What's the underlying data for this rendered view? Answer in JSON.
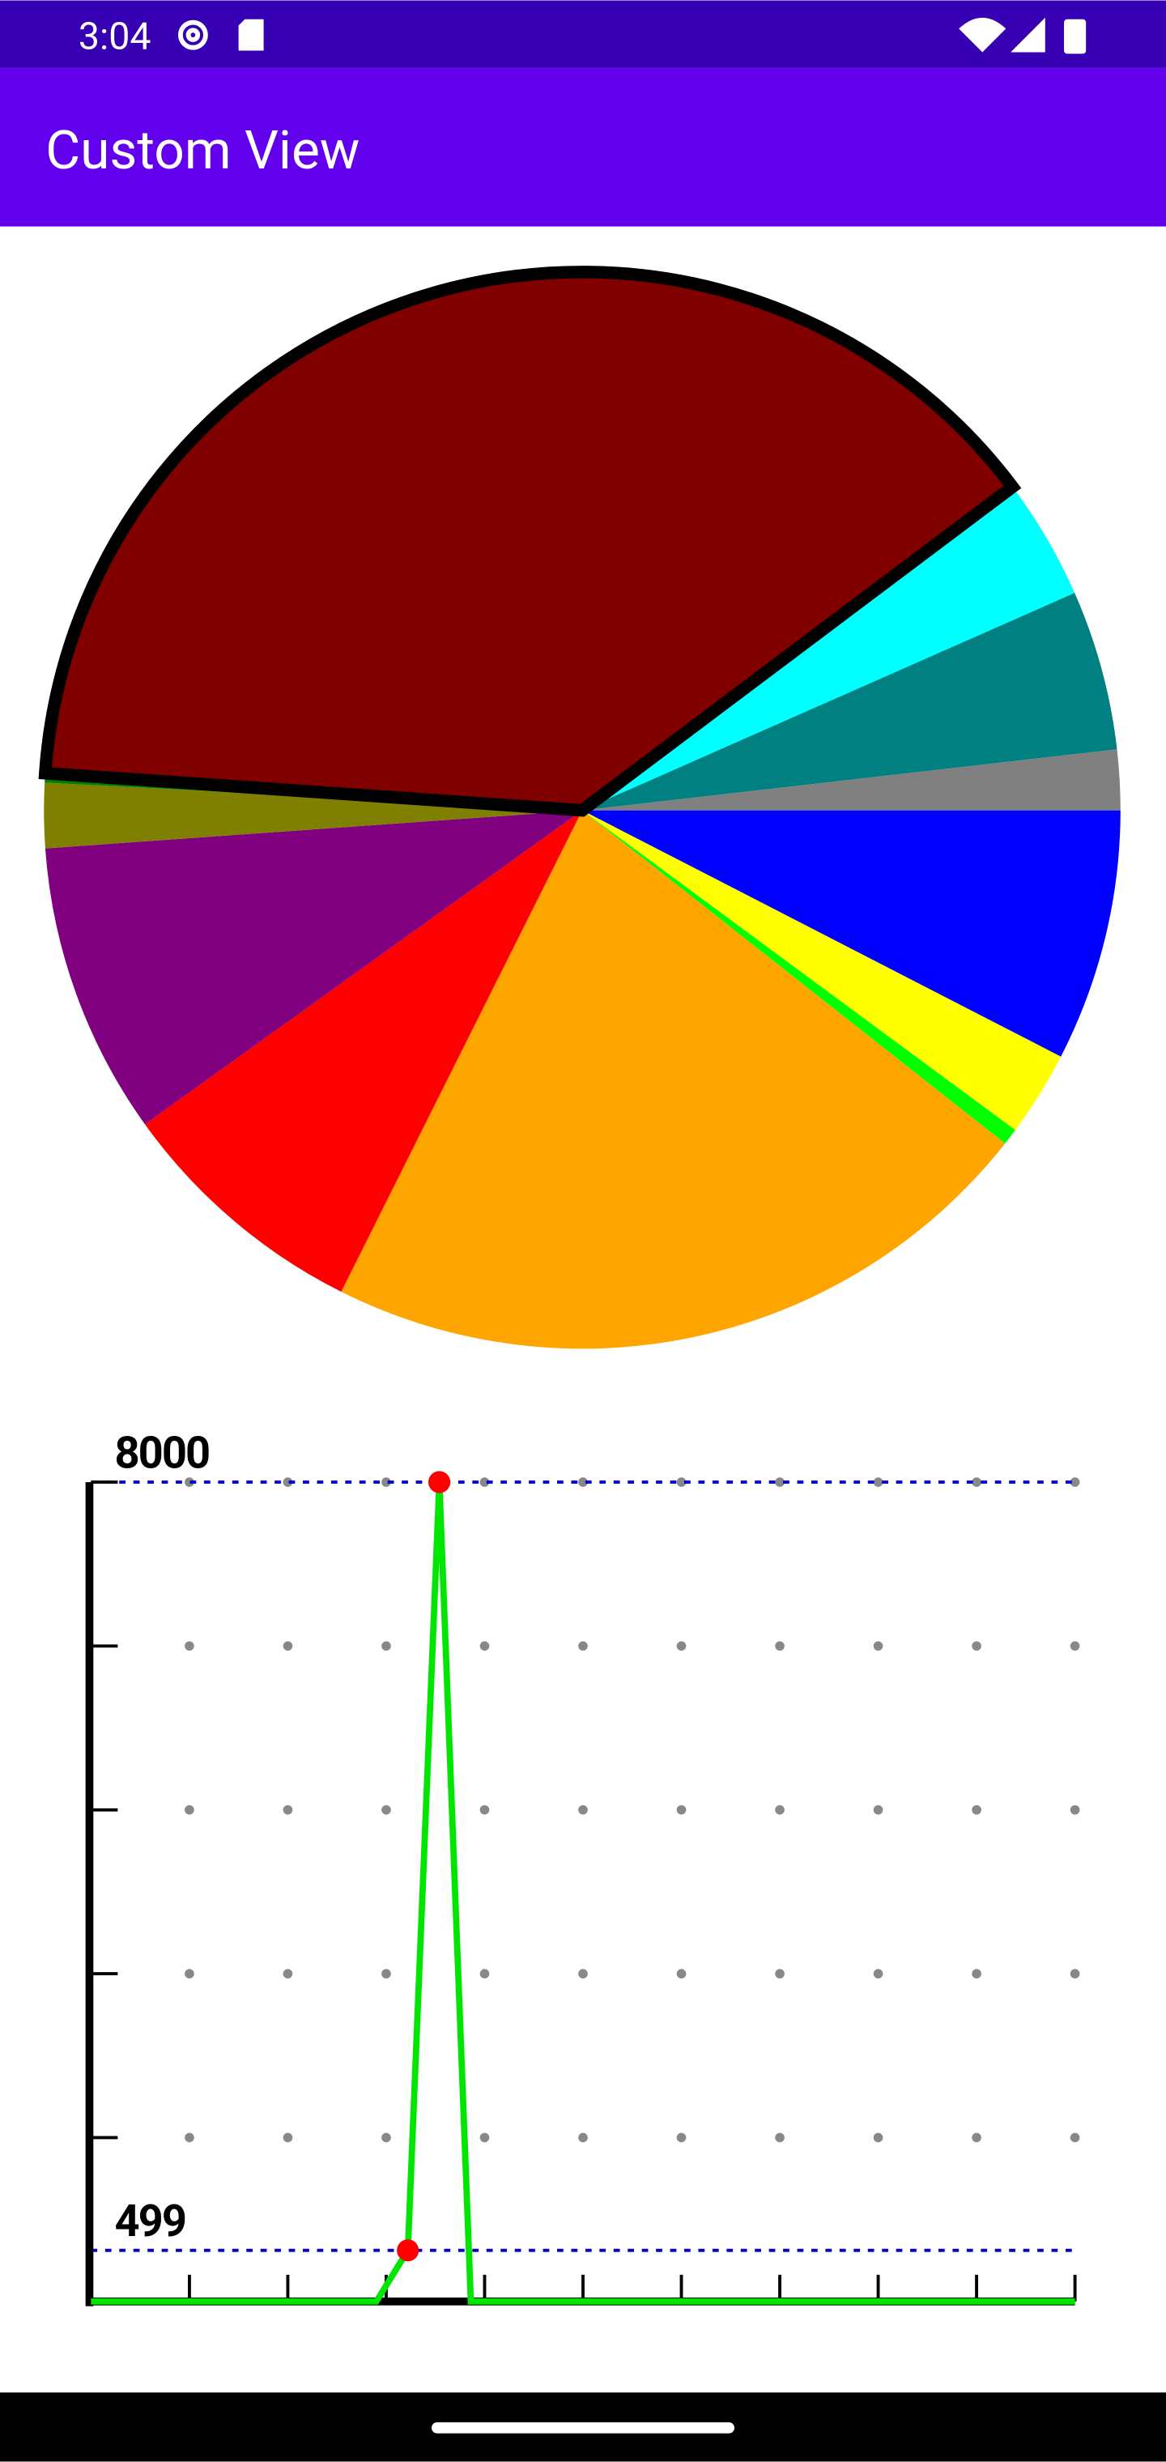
{
  "status_bar": {
    "time": "3:04"
  },
  "app_bar": {
    "title": "Custom View"
  },
  "chart_data": [
    {
      "type": "pie",
      "values": [
        27.2,
        9.2,
        1.8,
        78.3,
        27.7,
        31.6,
        7,
        1,
        139,
        13.1,
        17.3,
        6.5
      ],
      "colors": [
        "#0000ff",
        "#ffff00",
        "#00ff00",
        "#ffa500",
        "#ff0000",
        "#800080",
        "#808000",
        "#008000",
        "#800000",
        "#00ffff",
        "#008080",
        "#808080"
      ],
      "highlight_index": 8
    },
    {
      "type": "line",
      "x": [
        0,
        2.9,
        3.22,
        3.54,
        3.86,
        10
      ],
      "series": [
        {
          "color": "#00e600",
          "values": [
            0,
            0,
            499,
            8000,
            0,
            0
          ]
        }
      ],
      "xlim": [
        0,
        10
      ],
      "xticks": [
        0,
        1,
        2,
        3,
        4,
        5,
        6,
        7,
        8,
        9,
        10
      ],
      "ylim": [
        0,
        8000
      ],
      "yticks": [
        0,
        1600,
        3200,
        4800,
        6400,
        8000
      ],
      "grid": true,
      "reference_lines": [
        8000,
        499
      ],
      "reference_color": "#0000cc",
      "point_color": "#ff0000"
    }
  ]
}
